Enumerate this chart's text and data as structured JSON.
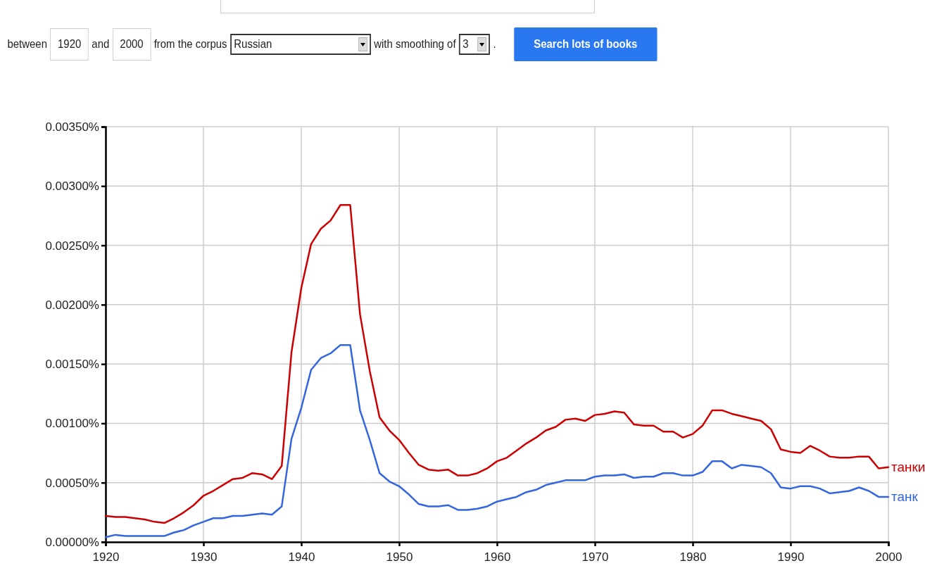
{
  "chart_data": {
    "type": "line",
    "x": [
      1920,
      1921,
      1922,
      1923,
      1924,
      1925,
      1926,
      1927,
      1928,
      1929,
      1930,
      1931,
      1932,
      1933,
      1934,
      1935,
      1936,
      1937,
      1938,
      1939,
      1940,
      1941,
      1942,
      1943,
      1944,
      1945,
      1946,
      1947,
      1948,
      1949,
      1950,
      1951,
      1952,
      1953,
      1954,
      1955,
      1956,
      1957,
      1958,
      1959,
      1960,
      1961,
      1962,
      1963,
      1964,
      1965,
      1966,
      1967,
      1968,
      1969,
      1970,
      1971,
      1972,
      1973,
      1974,
      1975,
      1976,
      1977,
      1978,
      1979,
      1980,
      1981,
      1982,
      1983,
      1984,
      1985,
      1986,
      1987,
      1988,
      1989,
      1990,
      1991,
      1992,
      1993,
      1994,
      1995,
      1996,
      1997,
      1998,
      1999,
      2000
    ],
    "series": [
      {
        "name": "танки",
        "color": "#cc0000",
        "values": [
          0.00022,
          0.00021,
          0.00021,
          0.0002,
          0.00019,
          0.00017,
          0.00016,
          0.0002,
          0.00025,
          0.00031,
          0.00039,
          0.00043,
          0.00048,
          0.00053,
          0.00054,
          0.00058,
          0.00057,
          0.00053,
          0.00064,
          0.0016,
          0.00214,
          0.00251,
          0.00264,
          0.00271,
          0.00284,
          0.00284,
          0.00192,
          0.00144,
          0.00105,
          0.00094,
          0.00086,
          0.00075,
          0.00065,
          0.00061,
          0.0006,
          0.00061,
          0.00056,
          0.00056,
          0.00058,
          0.00062,
          0.00068,
          0.00071,
          0.00077,
          0.00083,
          0.00088,
          0.00094,
          0.00097,
          0.00103,
          0.00104,
          0.00102,
          0.00107,
          0.00108,
          0.0011,
          0.00109,
          0.00099,
          0.00098,
          0.00098,
          0.00093,
          0.00093,
          0.00088,
          0.00091,
          0.00098,
          0.00111,
          0.00111,
          0.00108,
          0.00106,
          0.00104,
          0.00102,
          0.00095,
          0.00078,
          0.00076,
          0.00075,
          0.00081,
          0.00077,
          0.00072,
          0.00071,
          0.00071,
          0.00072,
          0.00072,
          0.00062,
          0.00063
        ]
      },
      {
        "name": "танк",
        "color": "#3366dd",
        "values": [
          4e-05,
          6e-05,
          5e-05,
          5e-05,
          5e-05,
          5e-05,
          5e-05,
          8e-05,
          0.0001,
          0.00014,
          0.00017,
          0.0002,
          0.0002,
          0.00022,
          0.00022,
          0.00023,
          0.00024,
          0.00023,
          0.0003,
          0.00087,
          0.00113,
          0.00145,
          0.00155,
          0.00159,
          0.00166,
          0.00166,
          0.00111,
          0.00086,
          0.00058,
          0.00051,
          0.00047,
          0.0004,
          0.00032,
          0.0003,
          0.0003,
          0.00031,
          0.00027,
          0.00027,
          0.00028,
          0.0003,
          0.00034,
          0.00036,
          0.00038,
          0.00042,
          0.00044,
          0.00048,
          0.0005,
          0.00052,
          0.00052,
          0.00052,
          0.00055,
          0.00056,
          0.00056,
          0.00057,
          0.00054,
          0.00055,
          0.00055,
          0.00058,
          0.00058,
          0.00056,
          0.00056,
          0.00059,
          0.00068,
          0.00068,
          0.00062,
          0.00065,
          0.00064,
          0.00063,
          0.00058,
          0.00046,
          0.00045,
          0.00047,
          0.00047,
          0.00045,
          0.00041,
          0.00042,
          0.00043,
          0.00046,
          0.00043,
          0.00038,
          0.00038
        ]
      }
    ],
    "xlim": [
      1920,
      2000
    ],
    "xticks": [
      1920,
      1930,
      1940,
      1950,
      1960,
      1970,
      1980,
      1990,
      2000
    ],
    "ylim": [
      0,
      0.0035
    ],
    "yticks": [
      {
        "value": 0,
        "label": "0.00000%"
      },
      {
        "value": 0.0005,
        "label": "0.00050%"
      },
      {
        "value": 0.001,
        "label": "0.00100%"
      },
      {
        "value": 0.0015,
        "label": "0.00150%"
      },
      {
        "value": 0.002,
        "label": "0.00200%"
      },
      {
        "value": 0.0025,
        "label": "0.00250%"
      },
      {
        "value": 0.003,
        "label": "0.00300%"
      },
      {
        "value": 0.0035,
        "label": "0.00350%"
      }
    ],
    "grid": true,
    "legend": false,
    "marker": "none",
    "line_style": "solid",
    "annotations": [
      "between",
      "1920",
      "and",
      "2000",
      "from the corpus",
      "Russian",
      "with smoothing of",
      "3",
      ".",
      "Search lots of books"
    ]
  }
}
